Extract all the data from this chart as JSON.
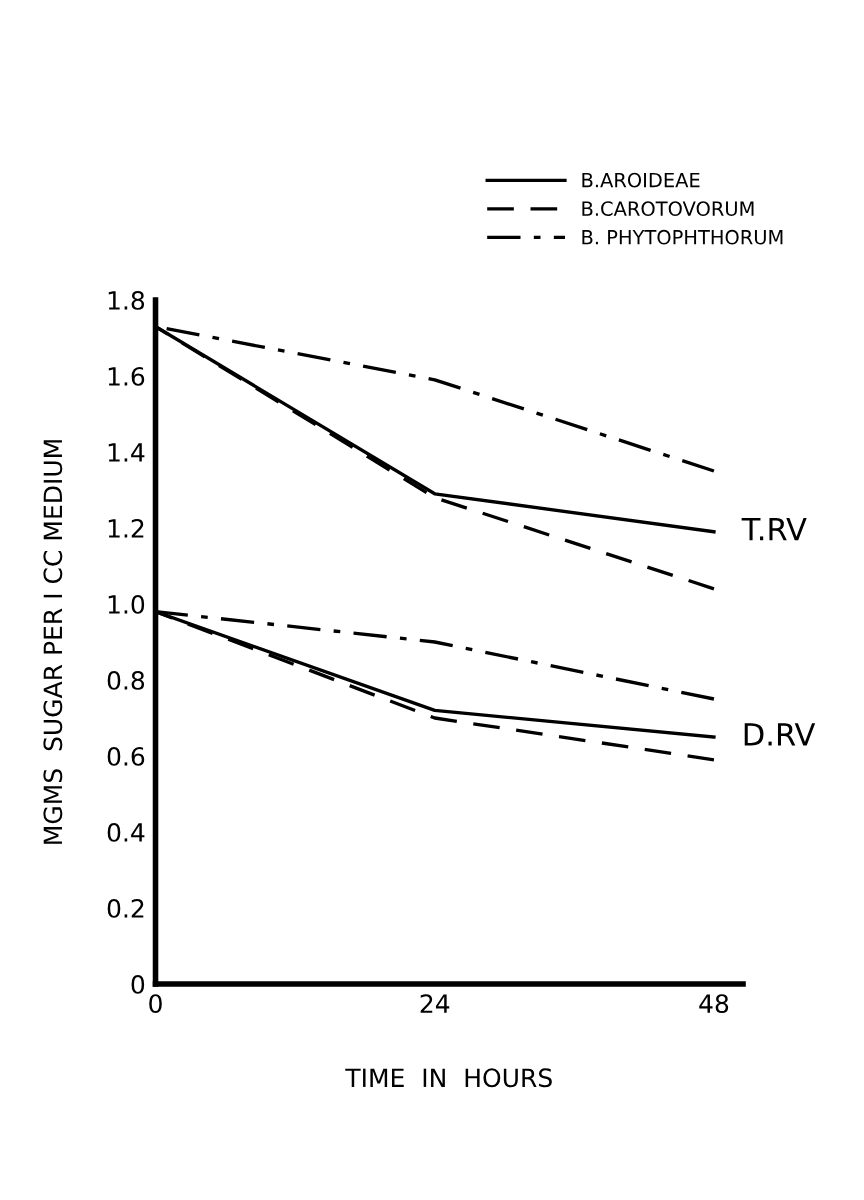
{
  "chart_data": {
    "type": "line",
    "xlabel": "TIME  IN  HOURS",
    "ylabel": "MGMS  SUGAR PER I CC MEDIUM",
    "x": [
      0,
      24,
      48
    ],
    "xlim": [
      0,
      50.5
    ],
    "xticks": [
      0,
      24,
      48
    ],
    "ylim": [
      0,
      1.8
    ],
    "yticks": [
      0,
      0.2,
      0.4,
      0.6,
      0.8,
      {
        "value": 1.0,
        "label": "1.0"
      },
      1.2,
      1.4,
      1.6,
      1.8
    ],
    "series": [
      {
        "name": "B.AROIDEAE",
        "color": "#000000",
        "line_style": "solid",
        "values": [
          1.73,
          1.29,
          1.19
        ]
      },
      {
        "name": "B.CAROTOVORUM",
        "color": "#000000",
        "line_style": "dashed",
        "values": [
          1.73,
          1.28,
          1.04
        ]
      },
      {
        "name": "B. PHYTOPHTHORUM",
        "color": "#000000",
        "line_style": "dashdot",
        "values": [
          1.73,
          1.59,
          1.35
        ]
      },
      {
        "color": "#000000",
        "line_style": "solid",
        "values": [
          0.98,
          0.72,
          0.65
        ]
      },
      {
        "color": "#000000",
        "line_style": "dashed",
        "values": [
          0.98,
          0.7,
          0.59
        ]
      },
      {
        "color": "#000000",
        "line_style": "dashdot",
        "values": [
          0.98,
          0.9,
          0.75
        ]
      }
    ],
    "annotations": [
      {
        "text": "T.RV",
        "x": 48,
        "y": 1.19
      },
      {
        "text": "D.RV",
        "x": 48,
        "y": 0.65
      }
    ],
    "grid": false,
    "legend": "top right",
    "marker": "none"
  }
}
